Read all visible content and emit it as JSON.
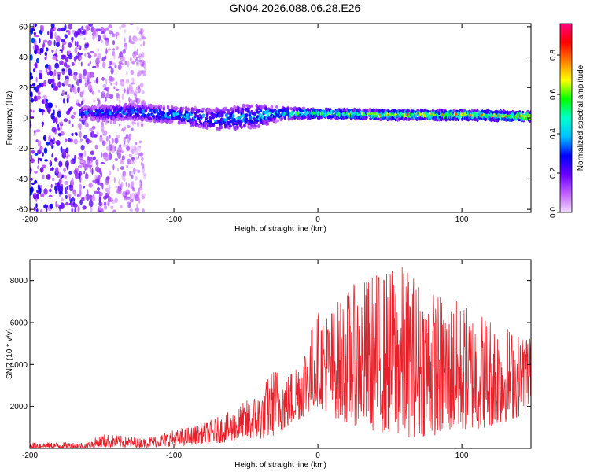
{
  "title": "GN04.2026.088.06.28.E26",
  "chart_data": [
    {
      "type": "heatmap",
      "xlabel": "Height of straight line (km)",
      "ylabel": "Frequency (Hz)",
      "xlim": [
        -200,
        148
      ],
      "ylim": [
        -62,
        62
      ],
      "xticks": [
        -200,
        -100,
        0,
        100
      ],
      "yticks": [
        60,
        40,
        20,
        0,
        -20,
        -40,
        -60
      ],
      "colorbar": {
        "label": "Normalized spectral amplitude",
        "range": [
          0,
          0.96
        ],
        "ticks": [
          0.0,
          0.2,
          0.4,
          0.6,
          0.8
        ],
        "colors": [
          "#f0d8ff",
          "#c060ff",
          "#6a00ff",
          "#0000ff",
          "#00c0ff",
          "#00ffcc",
          "#00ff00",
          "#ffff00",
          "#ff8000",
          "#ff0000",
          "#ff0080"
        ]
      },
      "band": [
        {
          "x": -165,
          "center": 3,
          "half_width": 4,
          "amplitude": 0.35
        },
        {
          "x": -130,
          "center": 4,
          "half_width": 5,
          "amplitude": 0.4
        },
        {
          "x": -100,
          "center": 2,
          "half_width": 5,
          "amplitude": 0.45
        },
        {
          "x": -70,
          "center": -1,
          "half_width": 7,
          "amplitude": 0.4
        },
        {
          "x": -45,
          "center": 1,
          "half_width": 8,
          "amplitude": 0.45
        },
        {
          "x": -25,
          "center": 3,
          "half_width": 4,
          "amplitude": 0.5
        },
        {
          "x": 0,
          "center": 3,
          "half_width": 3,
          "amplitude": 0.6
        },
        {
          "x": 50,
          "center": 2,
          "half_width": 3,
          "amplitude": 0.75
        },
        {
          "x": 100,
          "center": 2,
          "half_width": 3,
          "amplitude": 0.75
        },
        {
          "x": 148,
          "center": 1,
          "half_width": 3,
          "amplitude": 0.8
        }
      ],
      "noise_region": [
        -200,
        -120
      ]
    },
    {
      "type": "line",
      "xlabel": "Height of straight line (km)",
      "ylabel": "SNR (10 * v/v)",
      "xlim": [
        -200,
        148
      ],
      "ylim": [
        0,
        9000
      ],
      "xticks": [
        -200,
        -100,
        0,
        100
      ],
      "yticks": [
        2000,
        4000,
        6000,
        8000
      ],
      "color": "#e8202a",
      "envelope": {
        "x": [
          -200,
          -160,
          -150,
          -120,
          -100,
          -80,
          -60,
          -40,
          -30,
          -20,
          -10,
          0,
          10,
          20,
          40,
          60,
          80,
          100,
          120,
          140,
          148
        ],
        "low": [
          0,
          0,
          50,
          50,
          100,
          200,
          300,
          400,
          600,
          1000,
          1500,
          2000,
          1500,
          1200,
          800,
          500,
          600,
          800,
          1000,
          1500,
          2000
        ],
        "high": [
          300,
          300,
          700,
          500,
          900,
          1200,
          1800,
          2800,
          4000,
          3600,
          5000,
          6600,
          6800,
          7600,
          8500,
          8800,
          7600,
          7000,
          6500,
          5500,
          6000
        ]
      }
    }
  ]
}
